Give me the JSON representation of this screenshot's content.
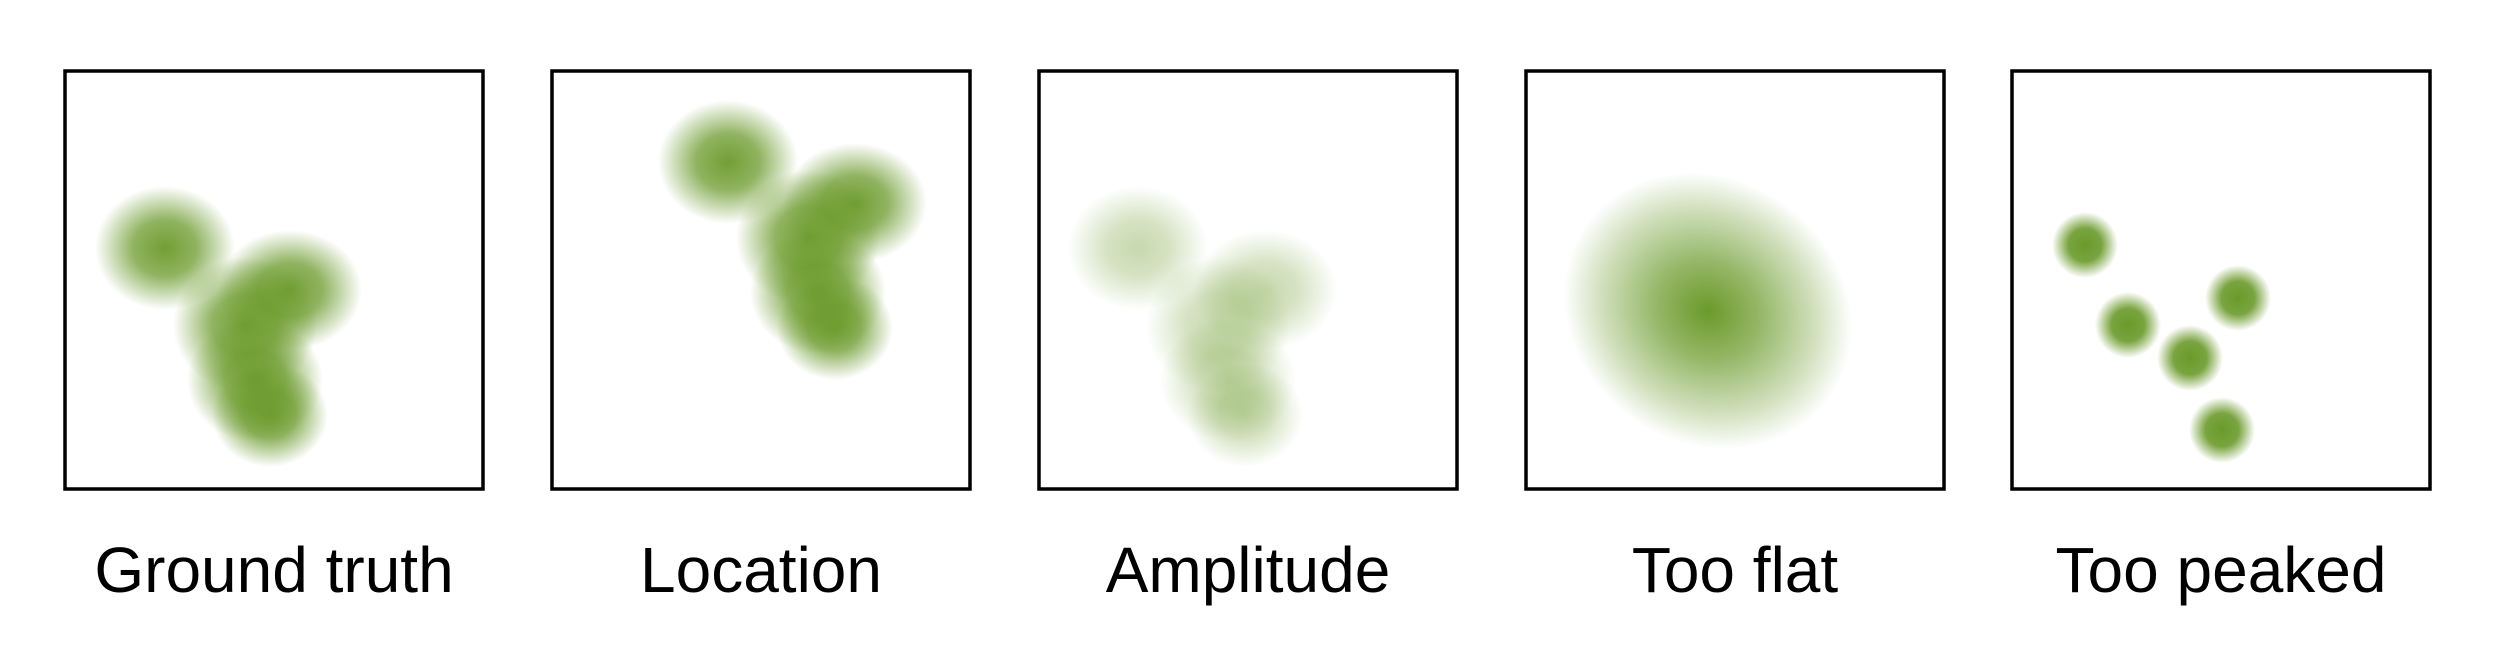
{
  "figure": {
    "blob_color": "#6a9a2a",
    "frame_color": "#000000",
    "panels": [
      {
        "id": "ground-truth",
        "label": "Ground truth"
      },
      {
        "id": "location",
        "label": "Location"
      },
      {
        "id": "amplitude",
        "label": "Amplitude"
      },
      {
        "id": "too-flat",
        "label": "Too flat"
      },
      {
        "id": "too-peaked",
        "label": "Too peaked"
      }
    ]
  }
}
